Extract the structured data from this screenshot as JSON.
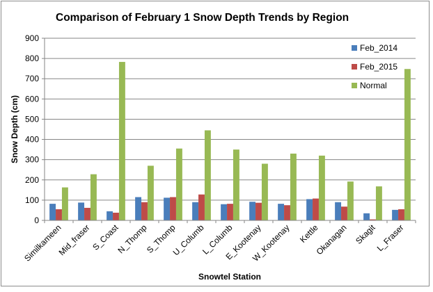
{
  "chart_data": {
    "type": "bar",
    "title": "Comparison of February 1 Snow Depth Trends by Region",
    "xlabel": "Snowtel Station",
    "ylabel": "Snow Depth (cm)",
    "ylim": [
      0,
      900
    ],
    "yticks": [
      0,
      100,
      200,
      300,
      400,
      500,
      600,
      700,
      800,
      900
    ],
    "grid": true,
    "legend_position": "right",
    "categories": [
      "Similkameen",
      "Mid_fraser",
      "S_Coast",
      "N_Thomp",
      "S_Thomp",
      "U_Columb",
      "L_Columb",
      "E_Kootenay",
      "W_Kootenay",
      "Kettle",
      "Okanagan",
      "Skagit",
      "L_Fraser"
    ],
    "series": [
      {
        "name": "Feb_2014",
        "color": "#4a7ebb",
        "values": [
          82,
          88,
          45,
          115,
          112,
          90,
          80,
          92,
          82,
          105,
          90,
          35,
          52
        ]
      },
      {
        "name": "Feb_2015",
        "color": "#be4b48",
        "values": [
          55,
          62,
          38,
          90,
          115,
          128,
          82,
          87,
          75,
          108,
          68,
          5,
          55
        ]
      },
      {
        "name": "Normal",
        "color": "#98b954",
        "values": [
          163,
          228,
          783,
          270,
          355,
          445,
          350,
          280,
          330,
          320,
          192,
          168,
          748
        ]
      }
    ]
  }
}
